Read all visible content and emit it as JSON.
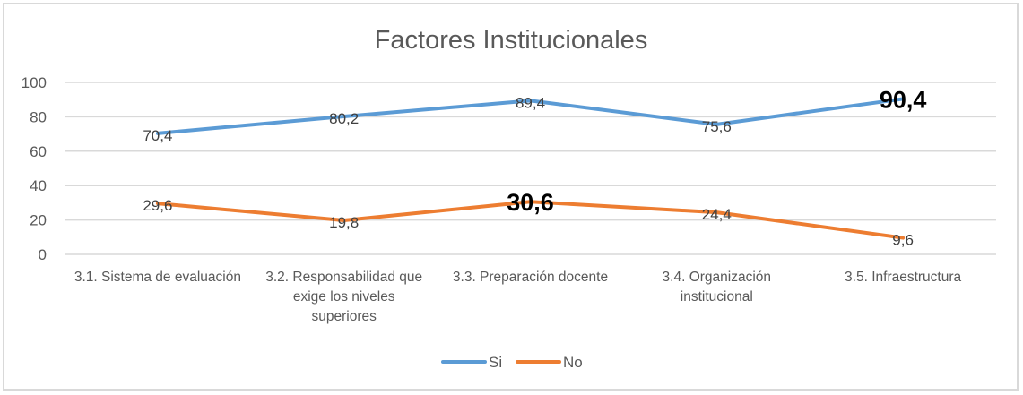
{
  "chart_data": {
    "type": "line",
    "title": "Factores Institucionales",
    "xlabel": "",
    "ylabel": "",
    "ylim": [
      0,
      100
    ],
    "yticks": [
      "0",
      "20",
      "40",
      "60",
      "80",
      "100"
    ],
    "grid": true,
    "legend_position": "bottom",
    "categories": [
      "3.1. Sistema de evaluación",
      "3.2. Responsabilidad que exige los niveles superiores",
      "3.3. Preparación docente",
      "3.4. Organización institucional",
      "3.5. Infraestructura"
    ],
    "category_lines": [
      [
        "3.1. Sistema de evaluación"
      ],
      [
        "3.2. Responsabilidad que",
        "exige los niveles",
        "superiores"
      ],
      [
        "3.3. Preparación docente"
      ],
      [
        "3.4. Organización",
        "institucional"
      ],
      [
        "3.5. Infraestructura"
      ]
    ],
    "series": [
      {
        "name": "Si",
        "color": "#5b9bd5",
        "values": [
          70.4,
          80.2,
          89.4,
          75.6,
          90.4
        ],
        "labels": [
          "70,4",
          "80,2",
          "89,4",
          "75,6",
          "90,4"
        ],
        "emphasized_index": 4
      },
      {
        "name": "No",
        "color": "#ed7d31",
        "values": [
          29.6,
          19.8,
          30.6,
          24.4,
          9.6
        ],
        "labels": [
          "29,6",
          "19,8",
          "30,6",
          "24,4",
          "9,6"
        ],
        "emphasized_index": 2
      }
    ]
  },
  "legend": {
    "si_label": "Si",
    "no_label": "No"
  }
}
